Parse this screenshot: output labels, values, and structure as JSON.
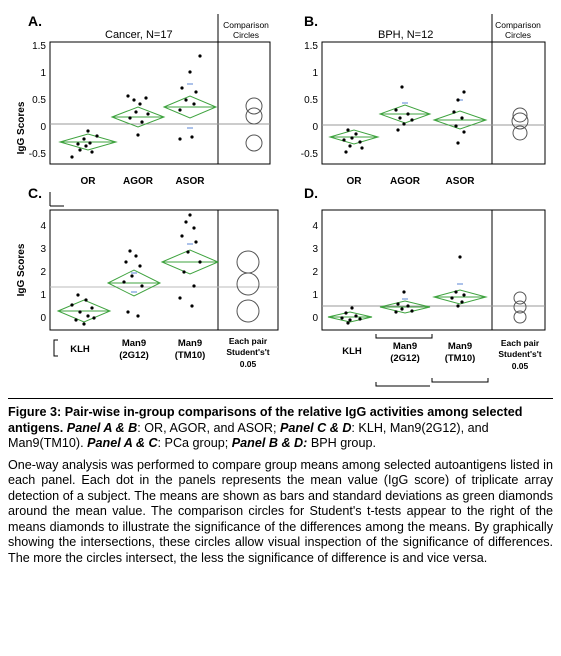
{
  "panels": [
    {
      "letter": "A.",
      "title": "Cancer, N=17",
      "comparison_label": [
        "Comparison",
        "Circles"
      ],
      "ylabel": "IgG Scores",
      "yticks": [
        "1.5",
        "1",
        "0.5",
        "0",
        "-0.5"
      ],
      "categories": [
        "OR",
        "AGOR",
        "ASOR"
      ],
      "means": [
        -0.28,
        0.17,
        0.35
      ]
    },
    {
      "letter": "B.",
      "title": "BPH, N=12",
      "comparison_label": [
        "Comparison",
        "Circles"
      ],
      "ylabel": "",
      "yticks": [
        "1.5",
        "1",
        "0.5",
        "0",
        "-0.5"
      ],
      "categories": [
        "OR",
        "AGOR",
        "ASOR"
      ],
      "means": [
        -0.2,
        0.22,
        0.13
      ]
    },
    {
      "letter": "C.",
      "title": "",
      "ylabel": "IgG Scores",
      "yticks": [
        "4",
        "3",
        "2",
        "1",
        "0"
      ],
      "categories": [
        [
          "KLH"
        ],
        [
          "Man9",
          "(2G12)"
        ],
        [
          "Man9",
          "(TM10)"
        ]
      ],
      "means": [
        0.25,
        1.45,
        2.35
      ],
      "pair_label": [
        "Each pair",
        "Student's't",
        "0.05"
      ]
    },
    {
      "letter": "D.",
      "title": "",
      "ylabel": "",
      "yticks": [
        "4",
        "3",
        "2",
        "1",
        "0"
      ],
      "categories": [
        [
          "KLH"
        ],
        [
          "Man9",
          "(2G12)"
        ],
        [
          "Man9",
          "(TM10)"
        ]
      ],
      "means": [
        0.0,
        0.45,
        0.9
      ],
      "pair_label": [
        "Each pair",
        "Student's't",
        "0.05"
      ]
    }
  ],
  "caption": {
    "fig_label": "Figure 3:",
    "fig_title": "Pair-wise in-group comparisons of the relative IgG activities among selected antigens.",
    "pab_label": "Panel A & B",
    "pab_text": ": OR, AGOR, and ASOR;",
    "pcd_label": "Panel C & D",
    "pcd_text": ": KLH, Man9(2G12), and Man9(TM10).",
    "pac_label": "Panel A & C",
    "pac_text": ": PCa group;",
    "pbd_label": "Panel B & D:",
    "pbd_text": "BPH group."
  },
  "body_text": "One-way analysis was performed to compare group means among selected autoantigens listed in each panel. Each dot in the panels represents the mean value (IgG score) of triplicate array detection of a subject. The means are shown as bars and standard deviations as green diamonds around the mean value. The comparison circles for Student's t-tests appear to the right of the means diamonds to illustrate the significance of the differences among the means. By graphically showing the intersections, these circles allow visual inspection of the significance of differences. The more the circles intersect, the less the significance of difference is and vice versa."
}
